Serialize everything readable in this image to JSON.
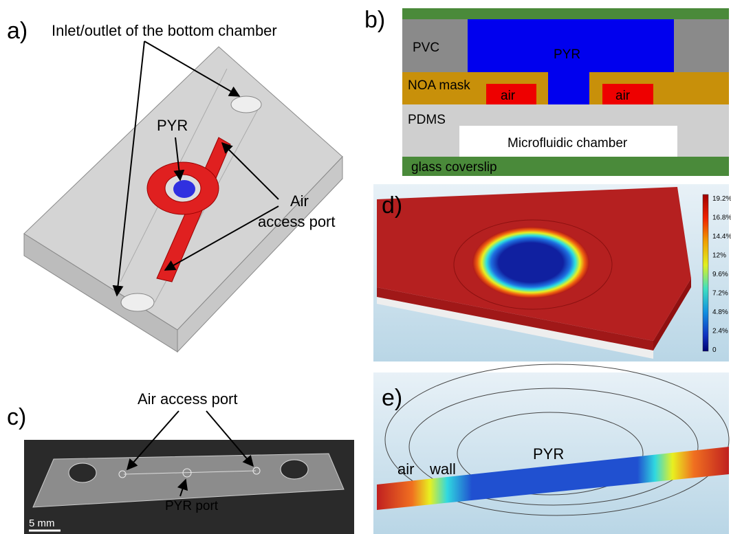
{
  "panels": {
    "a": {
      "label": "a)",
      "title": "Inlet/outlet of the bottom chamber",
      "pyr": "PYR",
      "air_port": [
        "Air",
        "access port"
      ]
    },
    "b": {
      "label": "b)",
      "pvc": "PVC",
      "pyr": "PYR",
      "noa": "NOA mask",
      "air_left": "air",
      "air_right": "air",
      "pdms": "PDMS",
      "chamber": "Microfluidic chamber",
      "glass": "glass coverslip"
    },
    "c": {
      "label": "c)",
      "title": "Air access port",
      "pyr_port": "PYR port",
      "scale": "5 mm"
    },
    "d": {
      "label": "d)",
      "colorbar": [
        "19.2%",
        "16.8%",
        "14.4%",
        "12%",
        "9.6%",
        "7.2%",
        "4.8%",
        "2.4%",
        "0"
      ]
    },
    "e": {
      "label": "e)",
      "air": "air",
      "wall": "wall",
      "pyr": "PYR"
    }
  }
}
